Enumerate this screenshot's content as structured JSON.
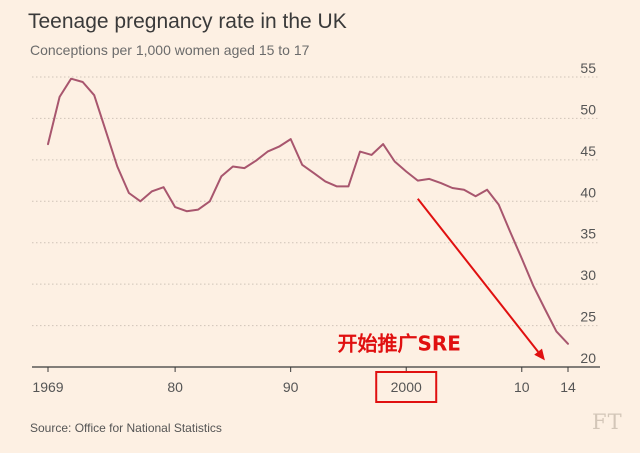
{
  "header": {
    "title": "Teenage pregnancy rate in the UK",
    "subtitle": "Conceptions per 1,000 women aged 15 to 17"
  },
  "footer": {
    "source": "Source: Office for National Statistics",
    "logo": "FT"
  },
  "colors": {
    "background": "#FDF0E3",
    "series_line": "#A8566E",
    "annotation": "#E01010",
    "grid": "#CFC3B8"
  },
  "chart_data": {
    "type": "line",
    "title": "Teenage pregnancy rate in the UK",
    "subtitle": "Conceptions per 1,000 women aged 15 to 17",
    "xlabel": "",
    "ylabel": "",
    "xlim": [
      1969,
      2014
    ],
    "ylim": [
      20,
      55
    ],
    "y_ticks": [
      20,
      25,
      30,
      35,
      40,
      45,
      50,
      55
    ],
    "x_ticks": [
      {
        "value": 1969,
        "label": "1969"
      },
      {
        "value": 1980,
        "label": "80"
      },
      {
        "value": 1990,
        "label": "90"
      },
      {
        "value": 2000,
        "label": "2000"
      },
      {
        "value": 2010,
        "label": "10"
      },
      {
        "value": 2014,
        "label": "14"
      }
    ],
    "grid": "horizontal dotted",
    "y_axis_position": "right",
    "series": [
      {
        "name": "Conceptions per 1,000 women aged 15 to 17",
        "x": [
          1969,
          1970,
          1971,
          1972,
          1973,
          1974,
          1975,
          1976,
          1977,
          1978,
          1979,
          1980,
          1981,
          1982,
          1983,
          1984,
          1985,
          1986,
          1987,
          1988,
          1989,
          1990,
          1991,
          1992,
          1993,
          1994,
          1995,
          1996,
          1997,
          1998,
          1999,
          2000,
          2001,
          2002,
          2003,
          2004,
          2005,
          2006,
          2007,
          2008,
          2009,
          2010,
          2011,
          2012,
          2013,
          2014
        ],
        "values": [
          46.9,
          52.6,
          54.8,
          54.4,
          52.8,
          48.5,
          44.2,
          41.0,
          40.0,
          41.2,
          41.7,
          39.3,
          38.8,
          39.0,
          40.0,
          43.0,
          44.2,
          44.0,
          44.9,
          46.0,
          46.6,
          47.5,
          44.4,
          43.4,
          42.4,
          41.8,
          41.8,
          46.0,
          45.6,
          46.9,
          44.8,
          43.6,
          42.5,
          42.7,
          42.2,
          41.6,
          41.4,
          40.6,
          41.4,
          39.6,
          36.3,
          33.1,
          29.8,
          27.0,
          24.3,
          22.8
        ]
      }
    ],
    "annotations": [
      {
        "type": "label",
        "text": "开始推广SRE",
        "x": 2000,
        "y": 22
      },
      {
        "type": "box",
        "target": "2000"
      },
      {
        "type": "arrow",
        "from": {
          "x": 2001,
          "y": 40.3
        },
        "to": {
          "x": 2012,
          "y": 20.8
        }
      }
    ]
  }
}
